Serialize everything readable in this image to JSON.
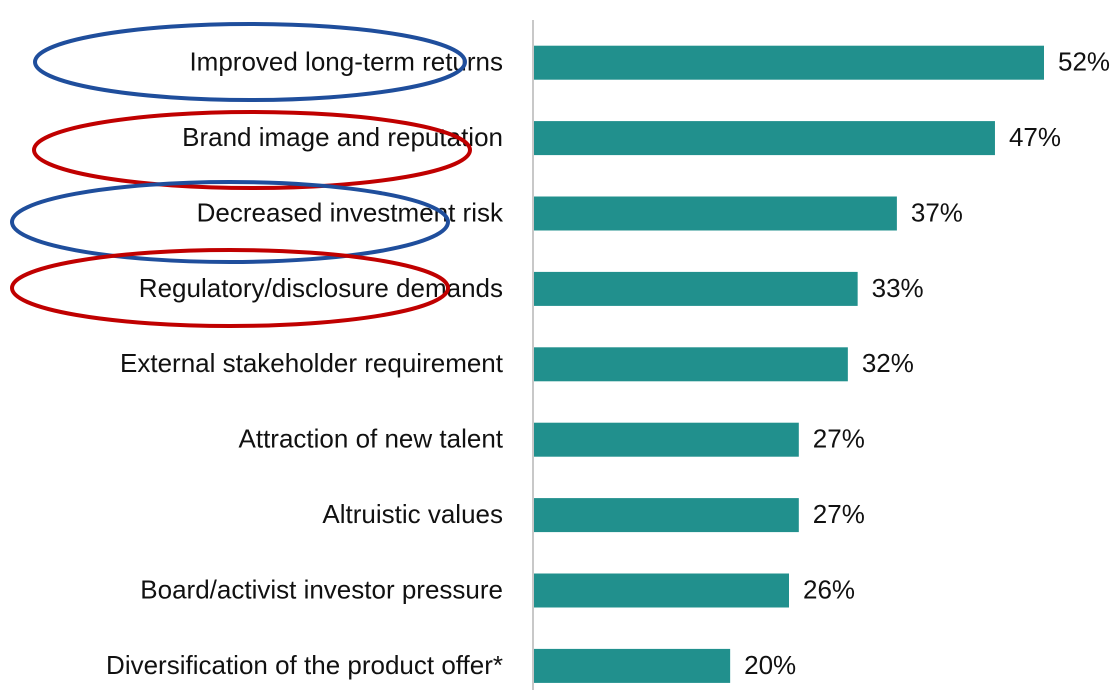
{
  "chart_data": {
    "type": "bar",
    "orientation": "horizontal",
    "categories": [
      "Improved long-term returns",
      "Brand image and reputation",
      "Decreased investment risk",
      "Regulatory/disclosure demands",
      "External stakeholder requirement",
      "Attraction of new talent",
      "Altruistic values",
      "Board/activist investor pressure",
      "Diversification of the product offer*"
    ],
    "values": [
      52,
      47,
      37,
      33,
      32,
      27,
      27,
      26,
      20
    ],
    "value_labels": [
      "52%",
      "47%",
      "37%",
      "33%",
      "32%",
      "27%",
      "27%",
      "26%",
      "20%"
    ],
    "color": "#21908d"
  }
}
